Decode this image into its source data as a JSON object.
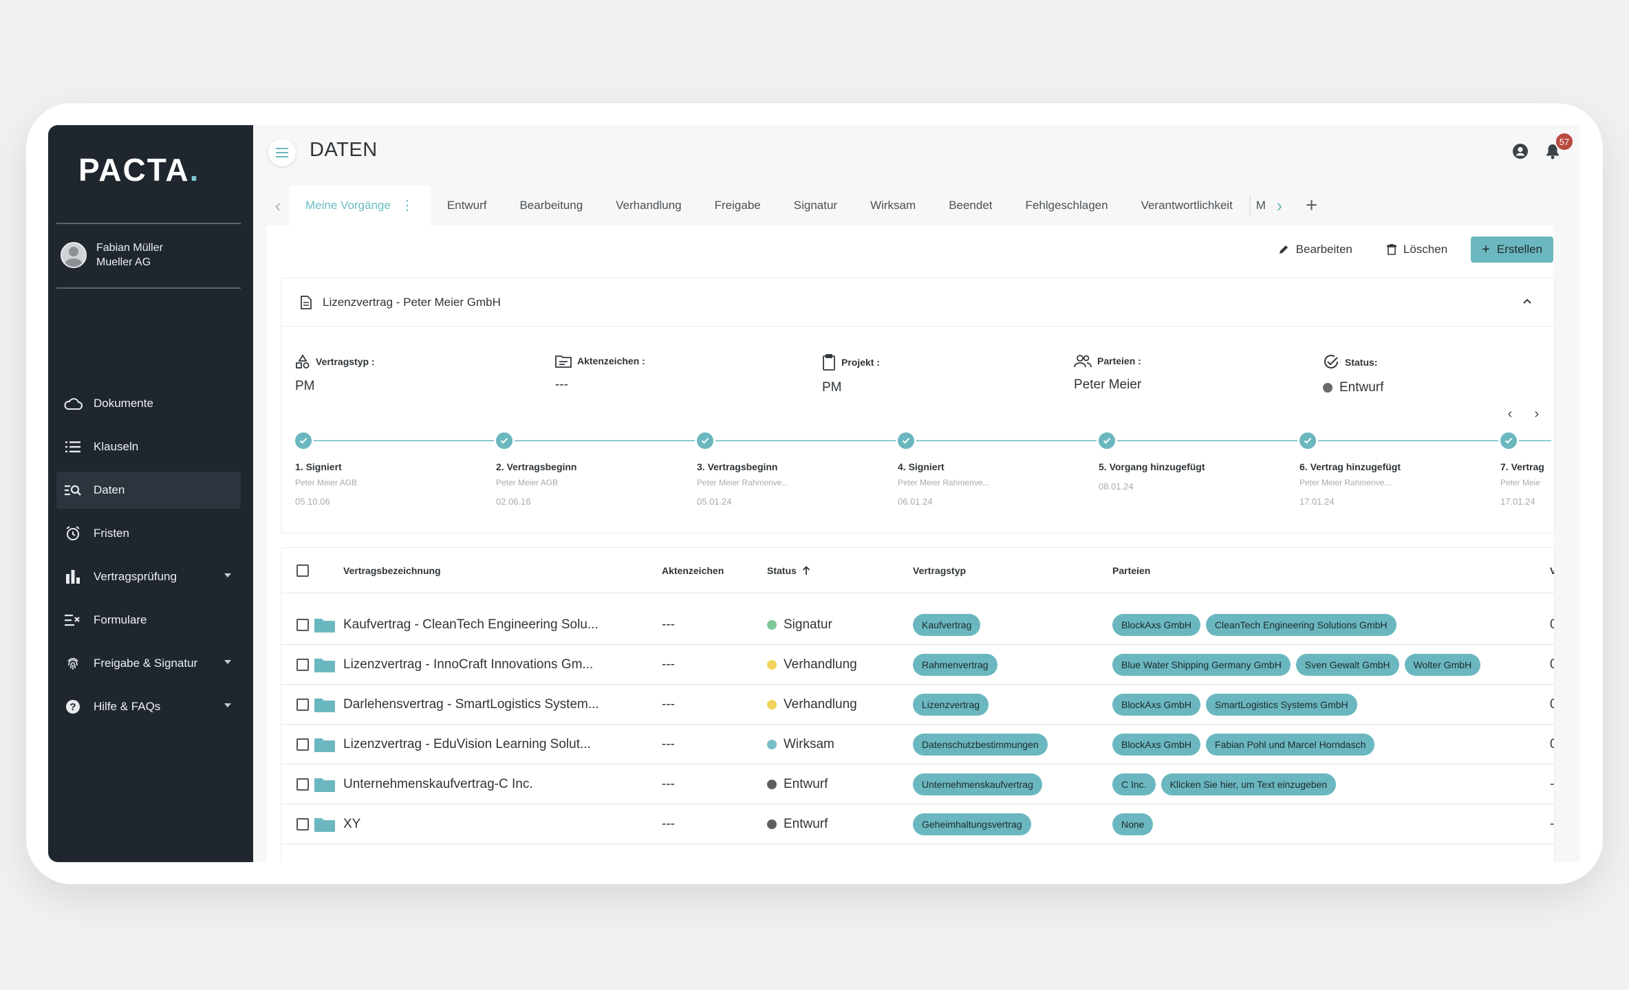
{
  "app": {
    "logo_text": "PACTA",
    "logo_dot": ".",
    "accent_color": "#6bb7bf"
  },
  "user": {
    "name": "Fabian Müller",
    "company": "Mueller AG"
  },
  "sidebar": {
    "items": [
      {
        "label": "Dokumente",
        "icon": "cloud-icon"
      },
      {
        "label": "Klauseln",
        "icon": "list-icon"
      },
      {
        "label": "Daten",
        "icon": "data-search-icon",
        "active": true
      },
      {
        "label": "Fristen",
        "icon": "alarm-clock-icon"
      },
      {
        "label": "Vertragsprüfung",
        "icon": "bar-chart-icon",
        "has_submenu": true
      },
      {
        "label": "Formulare",
        "icon": "form-icon"
      },
      {
        "label": "Freigabe & Signatur",
        "icon": "fingerprint-icon",
        "has_submenu": true
      },
      {
        "label": "Hilfe & FAQs",
        "icon": "help-icon",
        "has_submenu": true
      }
    ]
  },
  "header": {
    "title": "DATEN",
    "notification_count": "57"
  },
  "tabs": {
    "items": [
      "Meine Vorgänge",
      "Entwurf",
      "Bearbeitung",
      "Verhandlung",
      "Freigabe",
      "Signatur",
      "Wirksam",
      "Beendet",
      "Fehlgeschlagen",
      "Verantwortlichkeit"
    ],
    "clipped_label": "M",
    "active_index": 0
  },
  "actions": {
    "edit": "Bearbeiten",
    "delete": "Löschen",
    "create": "Erstellen"
  },
  "detail": {
    "title": "Lizenzvertrag - Peter Meier GmbH",
    "fields": [
      {
        "label": "Vertragstyp :",
        "value": "PM",
        "icon": "shapes-icon"
      },
      {
        "label": "Aktenzeichen :",
        "value": "---",
        "icon": "folder-doc-icon"
      },
      {
        "label": "Projekt :",
        "value": "PM",
        "icon": "clipboard-icon"
      },
      {
        "label": "Parteien :",
        "value": "Peter Meier",
        "icon": "people-icon"
      },
      {
        "label": "Status:",
        "value": "Entwurf",
        "icon": "check-circle-icon",
        "status_color": "#6a6a6a"
      }
    ],
    "timeline": [
      {
        "title": "1. Signiert",
        "sub": "Peter Meier AGB",
        "date": "05.10.06"
      },
      {
        "title": "2. Vertragsbeginn",
        "sub": "Peter Meier AGB",
        "date": "02.06.16"
      },
      {
        "title": "3. Vertragsbeginn",
        "sub": "Peter Meier Rahmenve...",
        "date": "05.01.24"
      },
      {
        "title": "4. Signiert",
        "sub": "Peter Meier Rahmenve...",
        "date": "06.01.24"
      },
      {
        "title": "5. Vorgang hinzugefügt",
        "sub": "",
        "date": "08.01.24"
      },
      {
        "title": "6. Vertrag hinzugefügt",
        "sub": "Peter Meier Rahmenve...",
        "date": "17.01.24"
      },
      {
        "title": "7. Vertrag",
        "sub": "Peter Meie",
        "date": "17.01.24"
      }
    ]
  },
  "table": {
    "headers": {
      "name": "Vertragsbezeichnung",
      "ref": "Aktenzeichen",
      "status": "Status",
      "type": "Vertragstyp",
      "parties": "Parteien",
      "last": "V"
    },
    "rows": [
      {
        "name": "Kaufvertrag - CleanTech Engineering Solu...",
        "ref": "---",
        "status": "Signatur",
        "status_color": "#7ec79a",
        "type": "Kaufvertrag",
        "parties": [
          "BlockAxs GmbH",
          "CleanTech Engineering Solutions GmbH"
        ],
        "last": "0"
      },
      {
        "name": "Lizenzvertrag - InnoCraft Innovations Gm...",
        "ref": "---",
        "status": "Verhandlung",
        "status_color": "#f2d45c",
        "type": "Rahmenvertrag",
        "parties": [
          "Blue Water Shipping Germany GmbH",
          "Sven Gewalt GmbH",
          "Wolter GmbH"
        ],
        "last": "0"
      },
      {
        "name": "Darlehensvertrag - SmartLogistics System...",
        "ref": "---",
        "status": "Verhandlung",
        "status_color": "#f2d45c",
        "type": "Lizenzvertrag",
        "parties": [
          "BlockAxs GmbH",
          "SmartLogistics Systems GmbH"
        ],
        "last": "0"
      },
      {
        "name": "Lizenzvertrag - EduVision Learning Solut...",
        "ref": "---",
        "status": "Wirksam",
        "status_color": "#78bcc8",
        "type": "Datenschutzbestimmungen",
        "parties": [
          "BlockAxs GmbH",
          "Fabian Pohl und Marcel Horndasch"
        ],
        "last": "0"
      },
      {
        "name": "Unternehmenskaufvertrag-C Inc.",
        "ref": "---",
        "status": "Entwurf",
        "status_color": "#5f5f5f",
        "type": "Unternehmenskaufvertrag",
        "parties": [
          "C Inc.",
          "Klicken Sie hier, um Text einzugeben"
        ],
        "last": "-"
      },
      {
        "name": "XY",
        "ref": "---",
        "status": "Entwurf",
        "status_color": "#5f5f5f",
        "type": "Geheimhaltungsvertrag",
        "parties": [
          "None"
        ],
        "last": "-"
      }
    ]
  }
}
